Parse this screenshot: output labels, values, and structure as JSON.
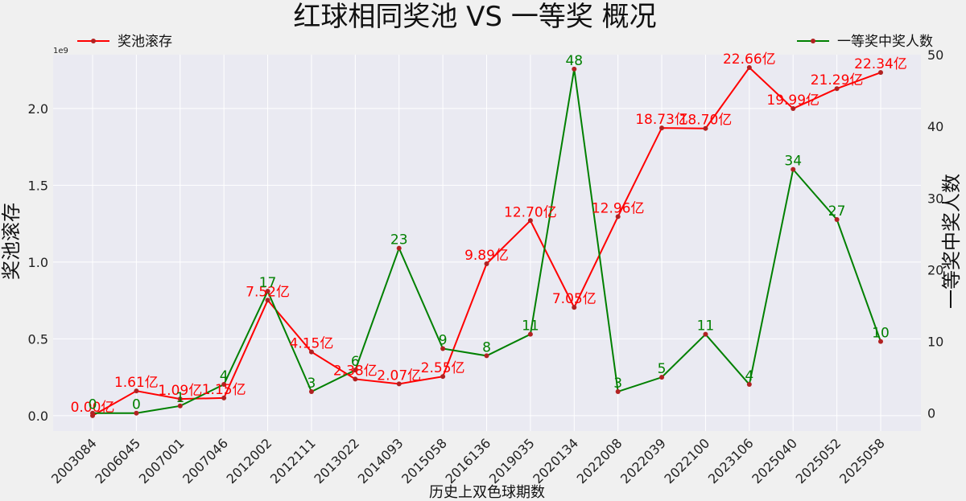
{
  "chart_data": {
    "type": "line",
    "title": "红球相同奖池 VS 一等奖 概况",
    "xlabel": "历史上双色球期数",
    "ylabel_left": "奖池滚存",
    "ylabel_right": "一等奖中奖人数",
    "left_axis_multiplier": "1e9",
    "categories": [
      "2003084",
      "2006045",
      "2007001",
      "2007046",
      "2012002",
      "2012111",
      "2013022",
      "2014093",
      "2015058",
      "2016136",
      "2019035",
      "2020134",
      "2022008",
      "2022039",
      "2022100",
      "2023106",
      "2025040",
      "2025052",
      "2025058"
    ],
    "y_left_range": [
      -0.1,
      2.35
    ],
    "y_left_ticks": [
      "0.0",
      "0.5",
      "1.0",
      "1.5",
      "2.0"
    ],
    "y_right_range": [
      -2.5,
      50
    ],
    "y_right_ticks": [
      "0",
      "10",
      "20",
      "30",
      "40",
      "50"
    ],
    "grid": true,
    "series": [
      {
        "name": "奖池滚存",
        "axis": "left",
        "color": "#ff0000",
        "values": [
          0.0,
          0.161,
          0.109,
          0.115,
          0.752,
          0.415,
          0.238,
          0.207,
          0.255,
          0.989,
          1.27,
          0.705,
          1.296,
          1.873,
          1.87,
          2.266,
          1.999,
          2.129,
          2.234
        ],
        "labels": [
          "0.00亿",
          "1.61亿",
          "1.09亿",
          "1.15亿",
          "7.52亿",
          "4.15亿",
          "2.38亿",
          "2.07亿",
          "2.55亿",
          "9.89亿",
          "12.70亿",
          "7.05亿",
          "12.96亿",
          "18.73亿",
          "18.70亿",
          "22.66亿",
          "19.99亿",
          "21.29亿",
          "22.34亿"
        ]
      },
      {
        "name": "一等奖中奖人数",
        "axis": "right",
        "color": "#008000",
        "values": [
          0,
          0,
          1,
          4,
          17,
          3,
          6,
          23,
          9,
          8,
          11,
          48,
          3,
          5,
          11,
          4,
          34,
          27,
          10
        ],
        "labels": [
          "0",
          "0",
          "1",
          "4",
          "17",
          "3",
          "6",
          "23",
          "9",
          "8",
          "11",
          "48",
          "3",
          "5",
          "11",
          "4",
          "34",
          "27",
          "10"
        ]
      }
    ],
    "legend": [
      {
        "label": "奖池滚存",
        "color": "#ff0000",
        "placement": "top-left"
      },
      {
        "label": "一等奖中奖人数",
        "color": "#008000",
        "placement": "top-right"
      }
    ],
    "point_color": "#b22222"
  }
}
